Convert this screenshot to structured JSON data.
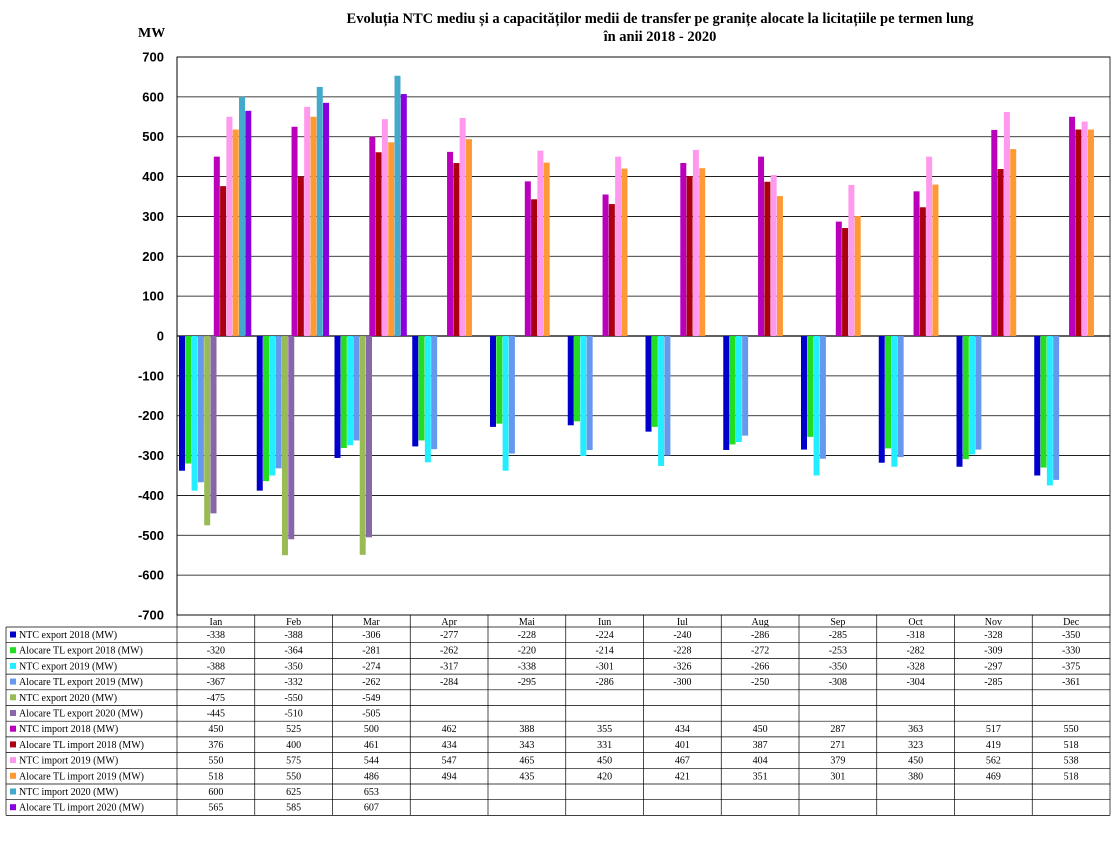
{
  "chart_data": {
    "type": "bar",
    "title_line1": "Evoluția NTC mediu și  a capacităților medii de transfer pe granițe alocate la licitațiile pe termen lung",
    "title_line2": "în anii 2018 - 2020",
    "ylabel": "MW",
    "ylim": [
      -700,
      700
    ],
    "yticks": [
      700,
      600,
      500,
      400,
      300,
      200,
      100,
      0,
      -100,
      -200,
      -300,
      -400,
      -500,
      -600,
      -700
    ],
    "grid": true,
    "legend_placement": "data-table-left",
    "categories": [
      "Ian",
      "Feb",
      "Mar",
      "Apr",
      "Mai",
      "Iun",
      "Iul",
      "Aug",
      "Sep",
      "Oct",
      "Nov",
      "Dec"
    ],
    "series": [
      {
        "name": "NTC export 2018 (MW)",
        "color": "#0000cc",
        "values": [
          -338,
          -388,
          -306,
          -277,
          -228,
          -224,
          -240,
          -286,
          -285,
          -318,
          -328,
          -350
        ]
      },
      {
        "name": "Alocare TL export 2018 (MW)",
        "color": "#22dd22",
        "values": [
          -320,
          -364,
          -281,
          -262,
          -220,
          -214,
          -228,
          -272,
          -253,
          -282,
          -309,
          -330
        ]
      },
      {
        "name": "NTC export 2019 (MW)",
        "color": "#22eeff",
        "values": [
          -388,
          -350,
          -274,
          -317,
          -338,
          -301,
          -326,
          -266,
          -350,
          -328,
          -297,
          -375
        ]
      },
      {
        "name": "Alocare TL export 2019 (MW)",
        "color": "#6699ee",
        "values": [
          -367,
          -332,
          -262,
          -284,
          -295,
          -286,
          -300,
          -250,
          -308,
          -304,
          -285,
          -361
        ]
      },
      {
        "name": "NTC export 2020 (MW)",
        "color": "#99bb55",
        "values": [
          -475,
          -550,
          -549,
          null,
          null,
          null,
          null,
          null,
          null,
          null,
          null,
          null
        ]
      },
      {
        "name": "Alocare TL export 2020 (MW)",
        "color": "#8866aa",
        "values": [
          -445,
          -510,
          -505,
          null,
          null,
          null,
          null,
          null,
          null,
          null,
          null,
          null
        ]
      },
      {
        "name": "NTC import 2018 (MW)",
        "color": "#bb00bb",
        "values": [
          450,
          525,
          500,
          462,
          388,
          355,
          434,
          450,
          287,
          363,
          517,
          550
        ]
      },
      {
        "name": "Alocare TL import 2018 (MW)",
        "color": "#aa0011",
        "values": [
          376,
          400,
          461,
          434,
          343,
          331,
          401,
          387,
          271,
          323,
          419,
          518
        ]
      },
      {
        "name": "NTC import 2019 (MW)",
        "color": "#ff99ee",
        "values": [
          550,
          575,
          544,
          547,
          465,
          450,
          467,
          404,
          379,
          450,
          562,
          538
        ]
      },
      {
        "name": "Alocare TL import 2019 (MW)",
        "color": "#ff9933",
        "values": [
          518,
          550,
          486,
          494,
          435,
          420,
          421,
          351,
          301,
          380,
          469,
          518
        ]
      },
      {
        "name": "NTC import 2020 (MW)",
        "color": "#44aacc",
        "values": [
          600,
          625,
          653,
          null,
          null,
          null,
          null,
          null,
          null,
          null,
          null,
          null
        ]
      },
      {
        "name": "Alocare TL import 2020 (MW)",
        "color": "#8800dd",
        "values": [
          565,
          585,
          607,
          null,
          null,
          null,
          null,
          null,
          null,
          null,
          null,
          null
        ]
      }
    ]
  }
}
